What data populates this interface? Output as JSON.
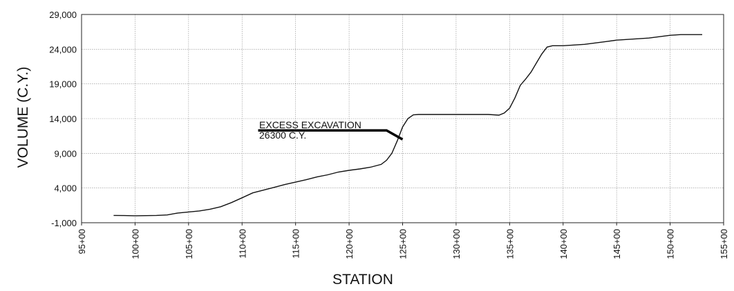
{
  "chart_data": {
    "type": "line",
    "xlabel": "STATION",
    "ylabel": "VOLUME (C.Y.)",
    "xlim": [
      95,
      155
    ],
    "ylim": [
      -1000,
      29000
    ],
    "x_ticks": [
      {
        "value": 95,
        "label": "95+00"
      },
      {
        "value": 100,
        "label": "100+00"
      },
      {
        "value": 105,
        "label": "105+00"
      },
      {
        "value": 110,
        "label": "110+00"
      },
      {
        "value": 115,
        "label": "115+00"
      },
      {
        "value": 120,
        "label": "120+00"
      },
      {
        "value": 125,
        "label": "125+00"
      },
      {
        "value": 130,
        "label": "130+00"
      },
      {
        "value": 135,
        "label": "135+00"
      },
      {
        "value": 140,
        "label": "140+00"
      },
      {
        "value": 145,
        "label": "145+00"
      },
      {
        "value": 150,
        "label": "150+00"
      },
      {
        "value": 155,
        "label": "155+00"
      }
    ],
    "y_ticks": [
      {
        "value": -1000,
        "label": "-1,000"
      },
      {
        "value": 4000,
        "label": "4,000"
      },
      {
        "value": 9000,
        "label": "9,000"
      },
      {
        "value": 14000,
        "label": "14,000"
      },
      {
        "value": 19000,
        "label": "19,000"
      },
      {
        "value": 24000,
        "label": "24,000"
      },
      {
        "value": 29000,
        "label": "29,000"
      }
    ],
    "grid": true,
    "series": [
      {
        "x": [
          98,
          99,
          100,
          101,
          102,
          103,
          104,
          105,
          106,
          107,
          108,
          109,
          110,
          111,
          112,
          113,
          114,
          115,
          116,
          117,
          118,
          119,
          120,
          121,
          122,
          123,
          123.5,
          124,
          124.5,
          125,
          125.5,
          126,
          126.5,
          127,
          128,
          129,
          130,
          131,
          132,
          133,
          134,
          134.5,
          135,
          135.5,
          136,
          136.5,
          137,
          137.5,
          138,
          138.5,
          139,
          140,
          141,
          142,
          143,
          144,
          145,
          146,
          147,
          148,
          149,
          150,
          151,
          152,
          153
        ],
        "y": [
          50,
          30,
          0,
          20,
          50,
          120,
          400,
          550,
          700,
          950,
          1300,
          1900,
          2600,
          3300,
          3700,
          4100,
          4500,
          4850,
          5200,
          5600,
          5900,
          6300,
          6550,
          6750,
          7000,
          7400,
          8000,
          9000,
          10800,
          12800,
          14000,
          14550,
          14600,
          14600,
          14600,
          14600,
          14600,
          14600,
          14600,
          14600,
          14500,
          14800,
          15500,
          17000,
          18800,
          19700,
          20700,
          22000,
          23300,
          24300,
          24500,
          24500,
          24600,
          24700,
          24900,
          25100,
          25300,
          25400,
          25500,
          25600,
          25800,
          26000,
          26100,
          26100,
          26100
        ]
      }
    ],
    "excess_line": {
      "x": [
        111.5,
        123.5,
        125
      ],
      "y": [
        12300,
        12300,
        11000
      ]
    },
    "annotations": {
      "line1": "EXCESS EXCAVATION",
      "line2": "26300 C.Y."
    }
  }
}
